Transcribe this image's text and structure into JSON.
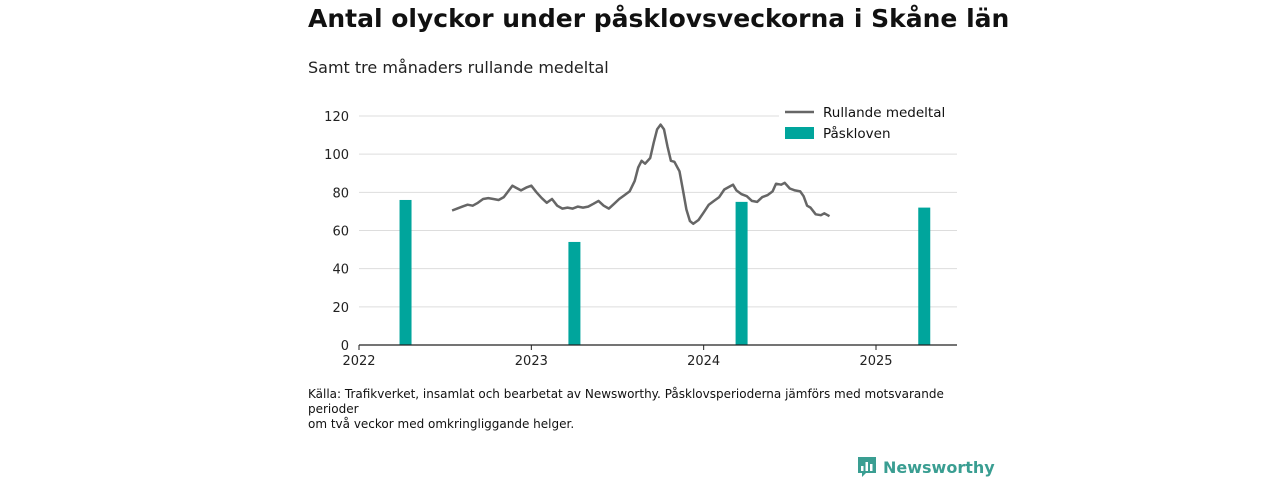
{
  "title": "Antal olyckor under påsklovsveckorna i Skåne län",
  "subtitle": "Samt tre månaders rullande medeltal",
  "source": [
    "Källa: Trafikverket, insamlat och bearbetat av Newsworthy. Påsklovsperioderna jämförs med motsvarande",
    "perioder",
    "om två veckor med omkringliggande helger."
  ],
  "brand": "Newsworthy",
  "colors": {
    "line": "#666666",
    "bar": "#00a59c",
    "grid": "#dddddd",
    "brand": "#3a9e92"
  },
  "chart_data": {
    "type": "bar+line",
    "ylim": [
      0,
      120
    ],
    "yticks": [
      0,
      20,
      40,
      60,
      80,
      100,
      120
    ],
    "xlim": [
      2022.0,
      2025.47
    ],
    "xticks": [
      2022,
      2023,
      2024,
      2025
    ],
    "xtick_labels": [
      "2022",
      "2023",
      "2024",
      "2025"
    ],
    "legend": [
      {
        "label": "Rullande medeltal",
        "kind": "line"
      },
      {
        "label": "Påskloven",
        "kind": "bar"
      }
    ],
    "legend_position": "top-right",
    "grid": true,
    "bars": {
      "name": "Påskloven",
      "x": [
        2022.27,
        2023.25,
        2024.22,
        2025.28
      ],
      "values": [
        76,
        54,
        75,
        72
      ]
    },
    "line": {
      "name": "Rullande medeltal",
      "points": [
        [
          2022.54,
          70.5
        ],
        [
          2022.57,
          71.5
        ],
        [
          2022.6,
          72.5
        ],
        [
          2022.63,
          73.5
        ],
        [
          2022.66,
          73
        ],
        [
          2022.69,
          74.5
        ],
        [
          2022.72,
          76.5
        ],
        [
          2022.75,
          77
        ],
        [
          2022.78,
          76.5
        ],
        [
          2022.81,
          76
        ],
        [
          2022.84,
          77.5
        ],
        [
          2022.87,
          81
        ],
        [
          2022.89,
          83.5
        ],
        [
          2022.91,
          82.5
        ],
        [
          2022.94,
          81
        ],
        [
          2022.97,
          82.5
        ],
        [
          2023.0,
          83.5
        ],
        [
          2023.03,
          80
        ],
        [
          2023.06,
          77
        ],
        [
          2023.09,
          74.5
        ],
        [
          2023.12,
          76.5
        ],
        [
          2023.15,
          73
        ],
        [
          2023.18,
          71.5
        ],
        [
          2023.21,
          72
        ],
        [
          2023.24,
          71.5
        ],
        [
          2023.27,
          72.5
        ],
        [
          2023.3,
          72
        ],
        [
          2023.33,
          72.5
        ],
        [
          2023.36,
          74
        ],
        [
          2023.39,
          75.5
        ],
        [
          2023.42,
          73
        ],
        [
          2023.45,
          71.5
        ],
        [
          2023.48,
          74
        ],
        [
          2023.51,
          76.5
        ],
        [
          2023.54,
          78.5
        ],
        [
          2023.57,
          80.5
        ],
        [
          2023.6,
          86
        ],
        [
          2023.62,
          93
        ],
        [
          2023.64,
          96.5
        ],
        [
          2023.66,
          95
        ],
        [
          2023.69,
          98
        ],
        [
          2023.71,
          106
        ],
        [
          2023.73,
          113
        ],
        [
          2023.75,
          115.5
        ],
        [
          2023.77,
          113
        ],
        [
          2023.79,
          104
        ],
        [
          2023.81,
          96.5
        ],
        [
          2023.83,
          96
        ],
        [
          2023.86,
          91
        ],
        [
          2023.88,
          81
        ],
        [
          2023.9,
          71
        ],
        [
          2023.92,
          65
        ],
        [
          2023.94,
          63.5
        ],
        [
          2023.97,
          65.5
        ],
        [
          2024.0,
          69.5
        ],
        [
          2024.03,
          73.5
        ],
        [
          2024.06,
          75.5
        ],
        [
          2024.09,
          77.5
        ],
        [
          2024.12,
          81.5
        ],
        [
          2024.15,
          83
        ],
        [
          2024.17,
          84
        ],
        [
          2024.19,
          81
        ],
        [
          2024.22,
          79
        ],
        [
          2024.25,
          78
        ],
        [
          2024.28,
          75.5
        ],
        [
          2024.31,
          75
        ],
        [
          2024.34,
          77.5
        ],
        [
          2024.37,
          78.5
        ],
        [
          2024.4,
          80.5
        ],
        [
          2024.42,
          84.5
        ],
        [
          2024.45,
          84
        ],
        [
          2024.47,
          85
        ],
        [
          2024.5,
          82
        ],
        [
          2024.53,
          81
        ],
        [
          2024.56,
          80.5
        ],
        [
          2024.58,
          78
        ],
        [
          2024.6,
          73
        ],
        [
          2024.62,
          72
        ],
        [
          2024.65,
          68.5
        ],
        [
          2024.68,
          68
        ],
        [
          2024.7,
          69
        ],
        [
          2024.73,
          67.5
        ]
      ]
    }
  }
}
